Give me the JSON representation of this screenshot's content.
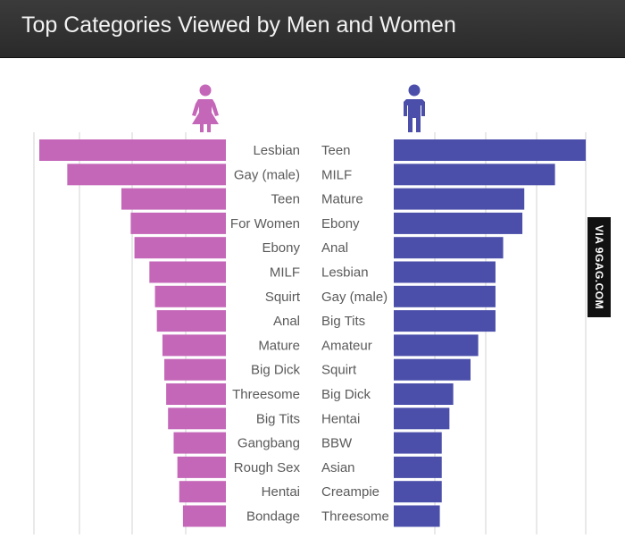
{
  "header": {
    "title": "Top Categories Viewed by Men and Women"
  },
  "watermark": {
    "text": "VIA 9GAG.COM"
  },
  "colors": {
    "women": "#c467b8",
    "men": "#4b4faa",
    "header_bg": "#333333"
  },
  "icons": {
    "women": "female-figure-icon",
    "men": "male-figure-icon"
  },
  "chart_data": {
    "type": "bar",
    "orientation": "horizontal-diverging",
    "title": "Top Categories Viewed by Men and Women",
    "grid": true,
    "series": [
      {
        "name": "Women",
        "categories": [
          "Lesbian",
          "Gay (male)",
          "Teen",
          "For Women",
          "Ebony",
          "MILF",
          "Squirt",
          "Anal",
          "Mature",
          "Big Dick",
          "Threesome",
          "Big Tits",
          "Gangbang",
          "Rough Sex",
          "Hentai",
          "Bondage"
        ],
        "values": [
          100,
          85,
          56,
          51,
          49,
          41,
          38,
          37,
          34,
          33,
          32,
          31,
          28,
          26,
          25,
          23
        ]
      },
      {
        "name": "Men",
        "categories": [
          "Teen",
          "MILF",
          "Mature",
          "Ebony",
          "Anal",
          "Lesbian",
          "Gay (male)",
          "Big Tits",
          "Amateur",
          "Squirt",
          "Big Dick",
          "Hentai",
          "BBW",
          "Asian",
          "Creampie",
          "Threesome"
        ],
        "values": [
          100,
          84,
          68,
          67,
          57,
          53,
          53,
          53,
          44,
          40,
          31,
          29,
          25,
          25,
          25,
          24
        ]
      }
    ]
  }
}
